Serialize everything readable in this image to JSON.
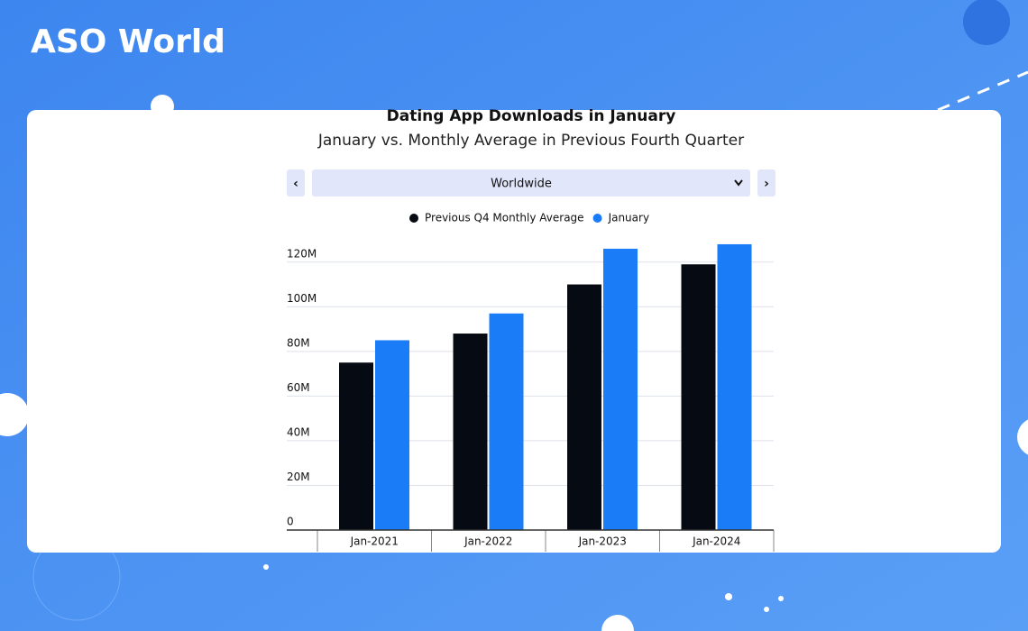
{
  "brand": "ASO World",
  "chart_data": {
    "type": "bar",
    "title": "Dating App Downloads in January",
    "subtitle": "January vs. Monthly Average in Previous Fourth Quarter",
    "region": "Worldwide",
    "categories": [
      "Jan-2021",
      "Jan-2022",
      "Jan-2023",
      "Jan-2024"
    ],
    "series": [
      {
        "name": "Previous Q4 Monthly Average",
        "color": "#060a12",
        "values": [
          75,
          88,
          110,
          119
        ]
      },
      {
        "name": "January",
        "color": "#1a7cf7",
        "values": [
          85,
          97,
          126,
          128
        ]
      }
    ],
    "ylim": [
      0,
      130
    ],
    "yticks": [
      0,
      {
        "value": 20,
        "label": "20M"
      },
      {
        "value": 40,
        "label": "40M"
      },
      {
        "value": 60,
        "label": "60M"
      },
      {
        "value": 80,
        "label": "80M"
      },
      {
        "value": 100,
        "label": "100M"
      },
      {
        "value": 120,
        "label": "120M"
      }
    ],
    "grid": true,
    "legend": "top"
  }
}
